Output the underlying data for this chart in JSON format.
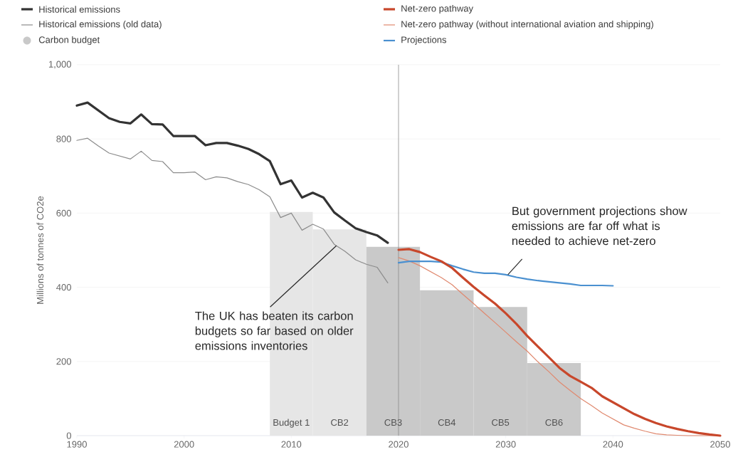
{
  "chart_data": {
    "type": "line",
    "ylabel": "Millions of tonnes of CO2e",
    "xlim": [
      1990,
      2050
    ],
    "xticks": [
      1990,
      2000,
      2010,
      2020,
      2030,
      2040,
      2050
    ],
    "ylim": [
      0,
      1000
    ],
    "yticks": [
      0,
      200,
      400,
      600,
      800,
      {
        "value": 1000,
        "label": "1,000"
      }
    ],
    "grid": "y",
    "legend": "top",
    "series": [
      {
        "name": "Historical emissions",
        "color": "#333333",
        "x": [
          1990,
          1991,
          1992,
          1993,
          1994,
          1995,
          1996,
          1997,
          1998,
          1999,
          2000,
          2001,
          2002,
          2003,
          2004,
          2005,
          2006,
          2007,
          2008,
          2009,
          2010,
          2011,
          2012,
          2013,
          2014,
          2015,
          2016,
          2017,
          2018,
          2019
        ],
        "values": [
          890,
          898,
          877,
          856,
          846,
          842,
          866,
          840,
          839,
          808,
          808,
          808,
          783,
          789,
          789,
          782,
          773,
          759,
          740,
          678,
          688,
          642,
          655,
          642,
          602,
          580,
          559,
          549,
          540,
          520
        ]
      },
      {
        "name": "Historical emissions (old data)",
        "color": "#8c8c8c",
        "x": [
          1990,
          1991,
          1992,
          1993,
          1994,
          1995,
          1996,
          1997,
          1998,
          1999,
          2000,
          2001,
          2002,
          2003,
          2004,
          2005,
          2006,
          2007,
          2008,
          2009,
          2010,
          2011,
          2012,
          2013,
          2014,
          2015,
          2016,
          2017,
          2018,
          2019
        ],
        "values": [
          796,
          802,
          781,
          762,
          754,
          746,
          767,
          742,
          739,
          709,
          709,
          711,
          690,
          698,
          695,
          685,
          677,
          663,
          644,
          588,
          600,
          554,
          570,
          557,
          516,
          497,
          474,
          462,
          454,
          412
        ]
      },
      {
        "name": "Carbon budget",
        "type": "histogram",
        "color": "#c9c9c9",
        "bins": [
          2008,
          2012,
          2017,
          2022,
          2027,
          2032,
          2037
        ],
        "values": [
          603,
          556,
          509,
          392,
          347,
          196
        ],
        "colors": [
          "#e6e6e6",
          "#e6e6e6",
          "#c9c9c9",
          "#c9c9c9",
          "#c9c9c9",
          "#c9c9c9"
        ]
      },
      {
        "name": "Net-zero pathway",
        "color": "#c8472b",
        "x": [
          2020,
          2021,
          2022,
          2023,
          2024,
          2025,
          2026,
          2027,
          2028,
          2029,
          2030,
          2031,
          2032,
          2033,
          2034,
          2035,
          2036,
          2037,
          2038,
          2039,
          2040,
          2041,
          2042,
          2043,
          2044,
          2045,
          2046,
          2047,
          2048,
          2049,
          2050
        ],
        "values": [
          501,
          503,
          495,
          482,
          470,
          452,
          426,
          401,
          378,
          356,
          330,
          301,
          269,
          240,
          212,
          183,
          161,
          145,
          129,
          106,
          90,
          74,
          58,
          45,
          34,
          25,
          18,
          12,
          7,
          3,
          0
        ]
      },
      {
        "name": "Net-zero pathway (without international aviation and shipping)",
        "color": "#e0896f",
        "x": [
          2020,
          2021,
          2022,
          2023,
          2024,
          2025,
          2026,
          2027,
          2028,
          2029,
          2030,
          2031,
          2032,
          2033,
          2034,
          2035,
          2036,
          2037,
          2038,
          2039,
          2040,
          2041,
          2042,
          2043,
          2044,
          2045,
          2046,
          2047,
          2048,
          2049,
          2050
        ],
        "values": [
          480,
          471,
          458,
          442,
          426,
          407,
          381,
          356,
          330,
          305,
          279,
          253,
          228,
          199,
          173,
          145,
          122,
          100,
          81,
          61,
          45,
          29,
          20,
          12,
          5,
          2,
          1,
          0,
          0,
          0,
          0
        ]
      },
      {
        "name": "Projections",
        "color": "#4a90d0",
        "x": [
          2020,
          2021,
          2022,
          2023,
          2024,
          2025,
          2026,
          2027,
          2028,
          2029,
          2030,
          2031,
          2032,
          2033,
          2034,
          2035,
          2036,
          2037,
          2038,
          2039,
          2040
        ],
        "values": [
          466,
          470,
          470,
          470,
          468,
          458,
          449,
          441,
          438,
          438,
          434,
          427,
          422,
          418,
          415,
          412,
          409,
          405,
          405,
          405,
          404
        ]
      }
    ],
    "ref_lines": [
      {
        "axis": "x",
        "value": 2020,
        "color": "#8c8c8c"
      }
    ],
    "annotations": [
      {
        "text": "The UK has beaten its carbon budgets so far based on older emissions inventories",
        "x": 2014.2,
        "y": 512
      },
      {
        "text": "But government projections show emissions are far off what is needed to achieve net-zero",
        "x": 2030.2,
        "y": 434
      },
      "Budget 1",
      "CB2",
      "CB3",
      "CB4",
      "CB5",
      "CB6"
    ]
  }
}
